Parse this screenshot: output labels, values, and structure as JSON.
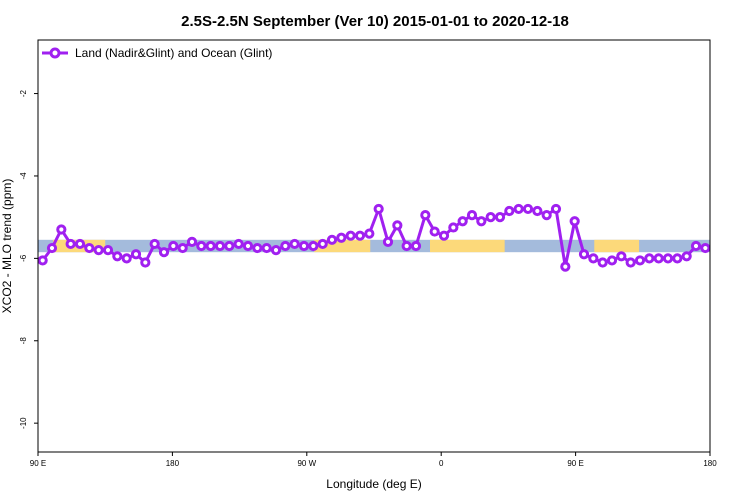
{
  "chart_data": {
    "type": "line",
    "title": "2.5S-2.5N September (Ver 10)   2015-01-01 to 2020-12-18",
    "xlabel": "Longitude (deg E)",
    "ylabel": "XCO2 - MLO trend (ppm)",
    "xlim": [
      0,
      360
    ],
    "ylim": [
      -10.7,
      -0.7
    ],
    "x_ticks": [
      {
        "x": 0,
        "label": "90 E"
      },
      {
        "x": 72,
        "label": "180"
      },
      {
        "x": 144,
        "label": "90 W"
      },
      {
        "x": 216,
        "label": "0"
      },
      {
        "x": 288,
        "label": "90 E"
      },
      {
        "x": 360,
        "label": "180"
      }
    ],
    "y_ticks": [
      -2,
      -4,
      -6,
      -8,
      -10
    ],
    "legend": {
      "position": "top-left",
      "entries": [
        "Land (Nadir&Glint) and Ocean (Glint)"
      ]
    },
    "series_color": "#a020f0",
    "band_colors": {
      "ocean": "#a4bbdc",
      "land": "#fcd97a"
    },
    "surface_band": {
      "y_top": -5.55,
      "y_bottom": -5.85,
      "land_segments": [
        [
          8,
          36
        ],
        [
          148,
          178
        ],
        [
          210,
          250
        ],
        [
          298,
          322
        ]
      ]
    },
    "series": [
      {
        "name": "Land (Nadir&Glint) and Ocean (Glint)",
        "x": [
          2.5,
          7.5,
          12.5,
          17.5,
          22.5,
          27.5,
          32.5,
          37.5,
          42.5,
          47.5,
          52.5,
          57.5,
          62.5,
          67.5,
          72.5,
          77.5,
          82.5,
          87.5,
          92.5,
          97.5,
          102.5,
          107.5,
          112.5,
          117.5,
          122.5,
          127.5,
          132.5,
          137.5,
          142.5,
          147.5,
          152.5,
          157.5,
          162.5,
          167.5,
          172.5,
          177.5,
          182.5,
          187.5,
          192.5,
          197.5,
          202.5,
          207.5,
          212.5,
          217.5,
          222.5,
          227.5,
          232.5,
          237.5,
          242.5,
          247.5,
          252.5,
          257.5,
          262.5,
          267.5,
          272.5,
          277.5,
          282.5,
          287.5,
          292.5,
          297.5,
          302.5,
          307.5,
          312.5,
          317.5,
          322.5,
          327.5,
          332.5,
          337.5,
          342.5,
          347.5,
          352.5,
          357.5
        ],
        "y": [
          -6.05,
          -5.75,
          -5.3,
          -5.65,
          -5.65,
          -5.75,
          -5.8,
          -5.8,
          -5.95,
          -6.0,
          -5.9,
          -6.1,
          -5.65,
          -5.85,
          -5.7,
          -5.75,
          -5.6,
          -5.7,
          -5.7,
          -5.7,
          -5.7,
          -5.65,
          -5.7,
          -5.75,
          -5.75,
          -5.8,
          -5.7,
          -5.65,
          -5.7,
          -5.7,
          -5.65,
          -5.55,
          -5.5,
          -5.45,
          -5.45,
          -5.4,
          -4.8,
          -5.6,
          -5.2,
          -5.7,
          -5.7,
          -4.95,
          -5.35,
          -5.45,
          -5.25,
          -5.1,
          -4.95,
          -5.1,
          -5.0,
          -5.0,
          -4.85,
          -4.8,
          -4.8,
          -4.85,
          -4.95,
          -4.8,
          -6.2,
          -5.1,
          -5.9,
          -6.0,
          -6.1,
          -6.05,
          -5.95,
          -6.1,
          -6.05,
          -6.0,
          -6.0,
          -6.0,
          -6.0,
          -5.95,
          -5.7,
          -5.75
        ]
      }
    ]
  }
}
